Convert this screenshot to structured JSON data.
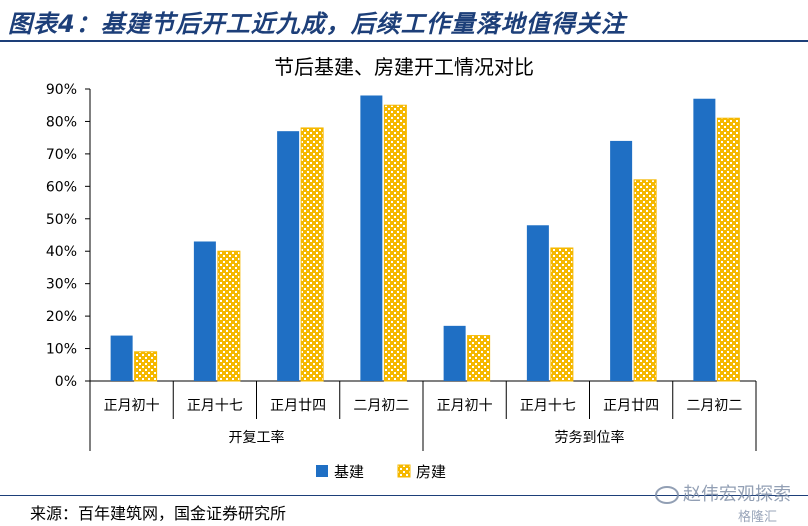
{
  "header": {
    "title": "图表4：基建节后开工近九成，后续工作量落地值得关注"
  },
  "footer": {
    "source": "来源：百年建筑网，国金证券研究所"
  },
  "watermark": {
    "text": "赵伟宏观探索",
    "sub": "格隆汇"
  },
  "colors": {
    "series1": "#1f6fc4",
    "series2": "#f5b800",
    "header": "#1d3f79"
  },
  "chart_data": {
    "type": "bar",
    "title": "节后基建、房建开工情况对比",
    "groups": [
      {
        "label": "开复工率",
        "categories": [
          "正月初十",
          "正月十七",
          "正月廿四",
          "二月初二"
        ]
      },
      {
        "label": "劳务到位率",
        "categories": [
          "正月初十",
          "正月十七",
          "正月廿四",
          "二月初二"
        ]
      }
    ],
    "series": [
      {
        "name": "基建",
        "values": [
          14,
          43,
          77,
          88,
          17,
          48,
          74,
          87
        ]
      },
      {
        "name": "房建",
        "values": [
          9,
          40,
          78,
          85,
          14,
          41,
          62,
          81
        ]
      }
    ],
    "ylim": [
      0,
      90
    ],
    "yticks": [
      "0%",
      "10%",
      "20%",
      "30%",
      "40%",
      "50%",
      "60%",
      "70%",
      "80%",
      "90%"
    ],
    "legend": "bottom"
  }
}
